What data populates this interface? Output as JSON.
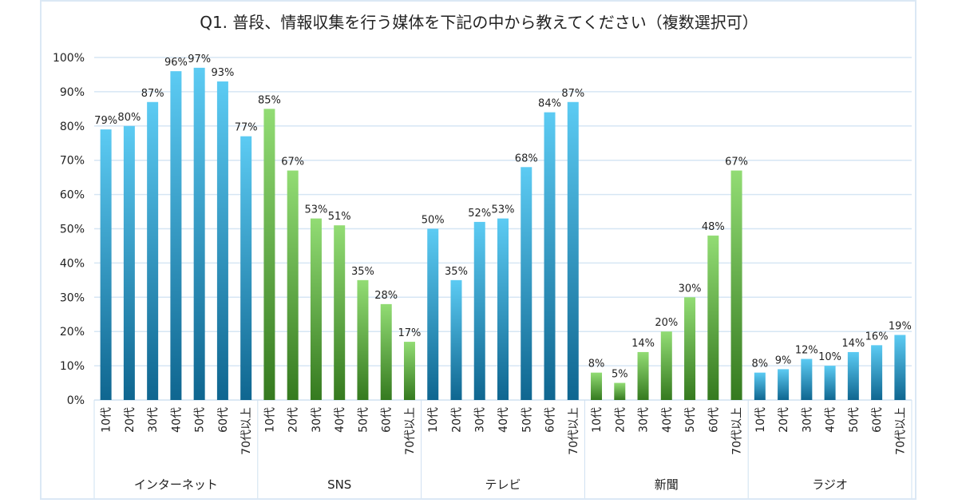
{
  "chart_data": {
    "type": "bar",
    "title": "Q1. 普段、情報収集を行う媒体を下記の中から教えてください（複数選択可）",
    "xlabel": "",
    "ylabel": "",
    "ylim": [
      0,
      100
    ],
    "yticks": [
      "0%",
      "10%",
      "20%",
      "30%",
      "40%",
      "50%",
      "60%",
      "70%",
      "80%",
      "90%",
      "100%"
    ],
    "grid": true,
    "legend": "none",
    "subcategories": [
      "10代",
      "20代",
      "30代",
      "40代",
      "50代",
      "60代",
      "70代以上"
    ],
    "groups": [
      {
        "name": "インターネット",
        "color": "blue",
        "values": [
          79,
          80,
          87,
          96,
          97,
          93,
          77
        ]
      },
      {
        "name": "SNS",
        "color": "green",
        "values": [
          85,
          67,
          53,
          51,
          35,
          28,
          17
        ]
      },
      {
        "name": "テレビ",
        "color": "blue",
        "values": [
          50,
          35,
          52,
          53,
          68,
          84,
          87
        ]
      },
      {
        "name": "新聞",
        "color": "green",
        "values": [
          8,
          5,
          14,
          20,
          30,
          48,
          67
        ]
      },
      {
        "name": "ラジオ",
        "color": "blue",
        "values": [
          8,
          9,
          12,
          10,
          14,
          16,
          19
        ]
      }
    ],
    "colors": {
      "blue_top": "#5ccbf3",
      "blue_bottom": "#0f6690",
      "green_top": "#92dc74",
      "green_bottom": "#357a1f",
      "grid": "#d6e6f4"
    }
  }
}
